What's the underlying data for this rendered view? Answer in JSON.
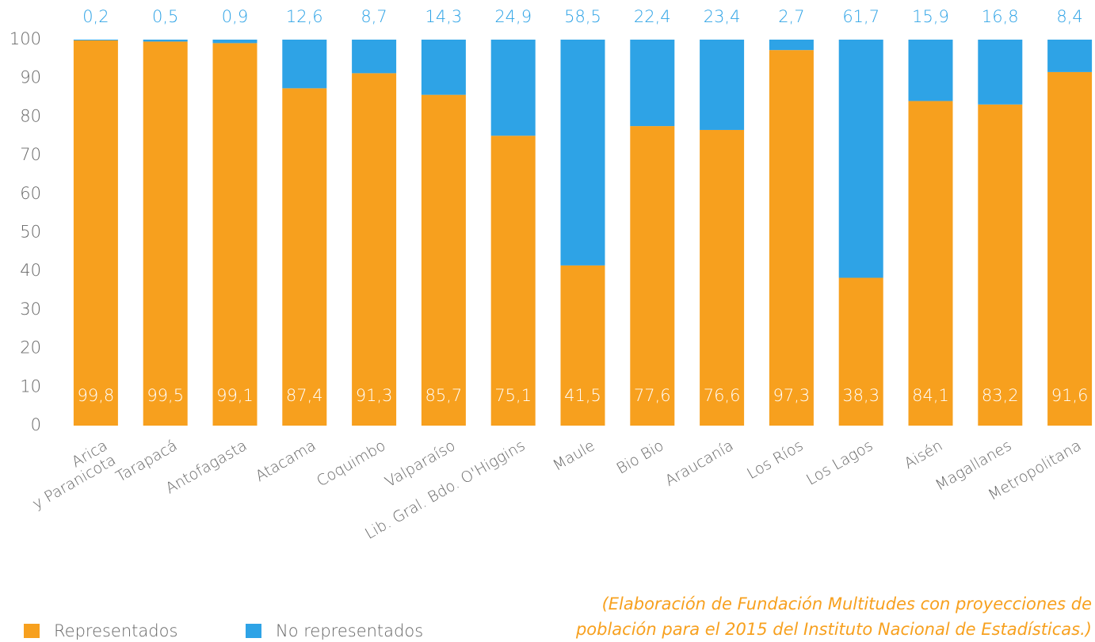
{
  "chart_data": {
    "type": "stacked_bar",
    "categories": [
      "Arica\ny Paranicota",
      "Tarapacá",
      "Antofagasta",
      "Atacama",
      "Coquimbo",
      "Valparaíso",
      "Lib. Gral. Bdo. O'Higgins",
      "Maule",
      "Bio Bio",
      "Araucanía",
      "Los Ríos",
      "Los Lagos",
      "Aisén",
      "Magallanes",
      "Metropolitana"
    ],
    "series": [
      {
        "name": "Representados",
        "color": "#f7a01e",
        "values": [
          99.8,
          99.5,
          99.1,
          87.4,
          91.3,
          85.7,
          75.1,
          41.5,
          77.6,
          76.6,
          97.3,
          38.3,
          84.1,
          83.2,
          91.6
        ],
        "value_labels": [
          "99,8",
          "99,5",
          "99,1",
          "87,4",
          "91,3",
          "85,7",
          "75,1",
          "41,5",
          "77,6",
          "76,6",
          "97,3",
          "38,3",
          "84,1",
          "83,2",
          "91,6"
        ]
      },
      {
        "name": "No representados",
        "color": "#2ea3e6",
        "values": [
          0.2,
          0.5,
          0.9,
          12.6,
          8.7,
          14.3,
          24.9,
          58.5,
          22.4,
          23.4,
          2.7,
          61.7,
          15.9,
          16.8,
          8.4
        ],
        "value_labels": [
          "0,2",
          "0,5",
          "0,9",
          "12,6",
          "8,7",
          "14,3",
          "24,9",
          "58,5",
          "22,4",
          "23,4",
          "2,7",
          "61,7",
          "15,9",
          "16,8",
          "8,4"
        ]
      }
    ],
    "ylim": [
      0,
      100
    ],
    "yticks": [
      0,
      10,
      20,
      30,
      40,
      50,
      60,
      70,
      80,
      90,
      100
    ],
    "grid": false,
    "note": [
      "(Elaboración de Fundación Multitudes con proyecciones de",
      "población para el 2015 del Instituto Nacional de Estadísticas.)"
    ]
  }
}
